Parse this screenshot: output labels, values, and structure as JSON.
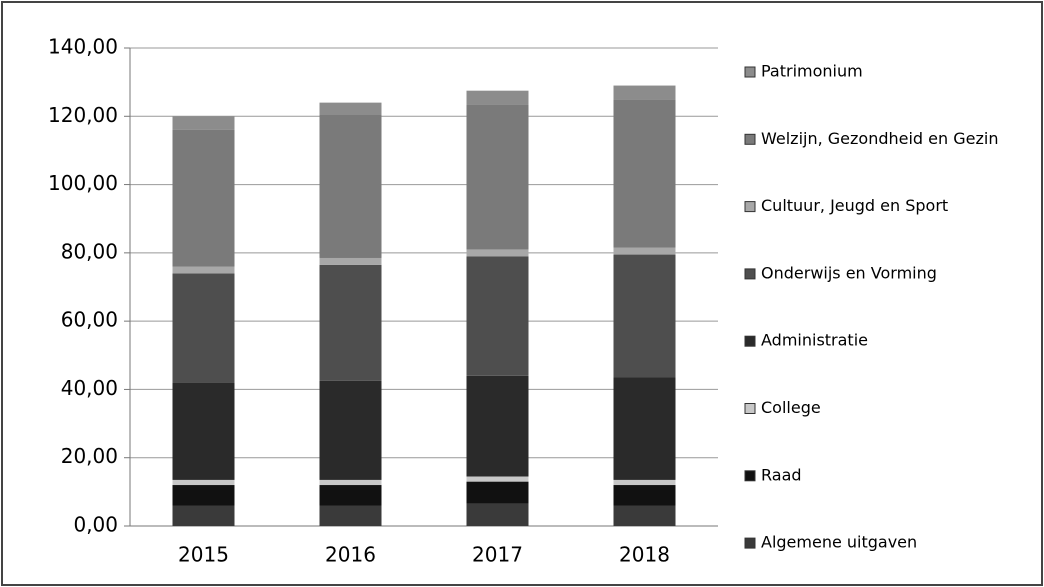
{
  "chart_data": {
    "type": "stacked_bar",
    "categories": [
      "2015",
      "2016",
      "2017",
      "2018"
    ],
    "series": [
      {
        "name": "Algemene uitgaven",
        "color": "#3a3a3a",
        "values": [
          6,
          6,
          6.5,
          6
        ]
      },
      {
        "name": "Raad",
        "color": "#111111",
        "values": [
          6,
          6,
          6.5,
          6
        ]
      },
      {
        "name": "College",
        "color": "#c8c8c8",
        "values": [
          1.5,
          1.5,
          1.5,
          1.5
        ]
      },
      {
        "name": "Administratie",
        "color": "#2a2a2a",
        "values": [
          28.5,
          29,
          29.5,
          30
        ]
      },
      {
        "name": "Onderwijs en Vorming",
        "color": "#4e4e4e",
        "values": [
          32,
          34,
          35,
          36
        ]
      },
      {
        "name": "Cultuur, Jeugd en Sport",
        "color": "#a8a8a8",
        "values": [
          2,
          2,
          2,
          2
        ]
      },
      {
        "name": "Welzijn, Gezondheid en Gezin",
        "color": "#7a7a7a",
        "values": [
          40,
          42,
          42.5,
          43.5
        ]
      },
      {
        "name": "Patrimonium",
        "color": "#8c8c8c",
        "values": [
          4,
          3.5,
          4,
          4
        ]
      }
    ],
    "ylim": [
      0,
      140
    ],
    "yticks": [
      {
        "value": 0,
        "label": "0,00"
      },
      {
        "value": 20,
        "label": "20,00"
      },
      {
        "value": 40,
        "label": "40,00"
      },
      {
        "value": 60,
        "label": "60,00"
      },
      {
        "value": 80,
        "label": "80,00"
      },
      {
        "value": 100,
        "label": "100,00"
      },
      {
        "value": 120,
        "label": "120,00"
      },
      {
        "value": 140,
        "label": "140,00"
      }
    ],
    "grid": true,
    "legend": "right"
  }
}
